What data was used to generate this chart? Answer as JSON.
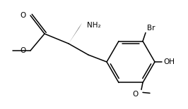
{
  "bg_color": "#ffffff",
  "line_color": "#000000",
  "text_color": "#000000",
  "label_NH2": "NH₂",
  "label_Br": "Br",
  "label_OH": "OH",
  "label_O_ester": "O",
  "label_O_methyl": "O",
  "label_O_methoxy": "O",
  "figsize": [
    2.66,
    1.55
  ],
  "dpi": 100
}
